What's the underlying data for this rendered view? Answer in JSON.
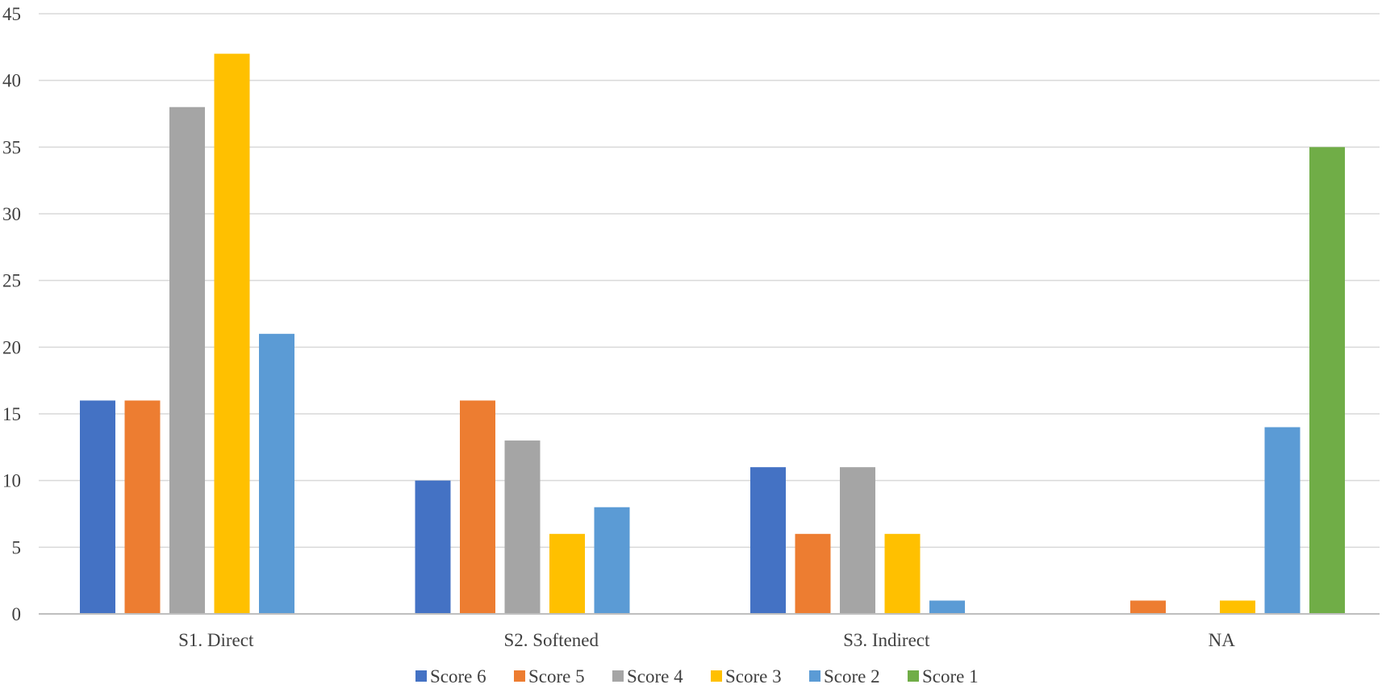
{
  "chart_data": {
    "type": "bar",
    "categories": [
      "S1. Direct",
      "S2. Softened",
      "S3. Indirect",
      "NA"
    ],
    "series": [
      {
        "name": "Score 6",
        "color": "#4472C4",
        "values": [
          16,
          10,
          11,
          0
        ]
      },
      {
        "name": "Score 5",
        "color": "#ED7D31",
        "values": [
          16,
          16,
          6,
          1
        ]
      },
      {
        "name": "Score 4",
        "color": "#A5A5A5",
        "values": [
          38,
          13,
          11,
          0
        ]
      },
      {
        "name": "Score 3",
        "color": "#FFC000",
        "values": [
          42,
          6,
          6,
          1
        ]
      },
      {
        "name": "Score 2",
        "color": "#5B9BD5",
        "values": [
          21,
          8,
          1,
          14
        ]
      },
      {
        "name": "Score 1",
        "color": "#70AD47",
        "values": [
          0,
          0,
          0,
          35
        ]
      }
    ],
    "ylim": [
      0,
      45
    ],
    "y_ticks": [
      0,
      5,
      10,
      15,
      20,
      25,
      30,
      35,
      40,
      45
    ],
    "grid": true,
    "legend_position": "bottom",
    "gridline_color": "#D9D9D9",
    "axis_line_color": "#BFBFBF"
  }
}
